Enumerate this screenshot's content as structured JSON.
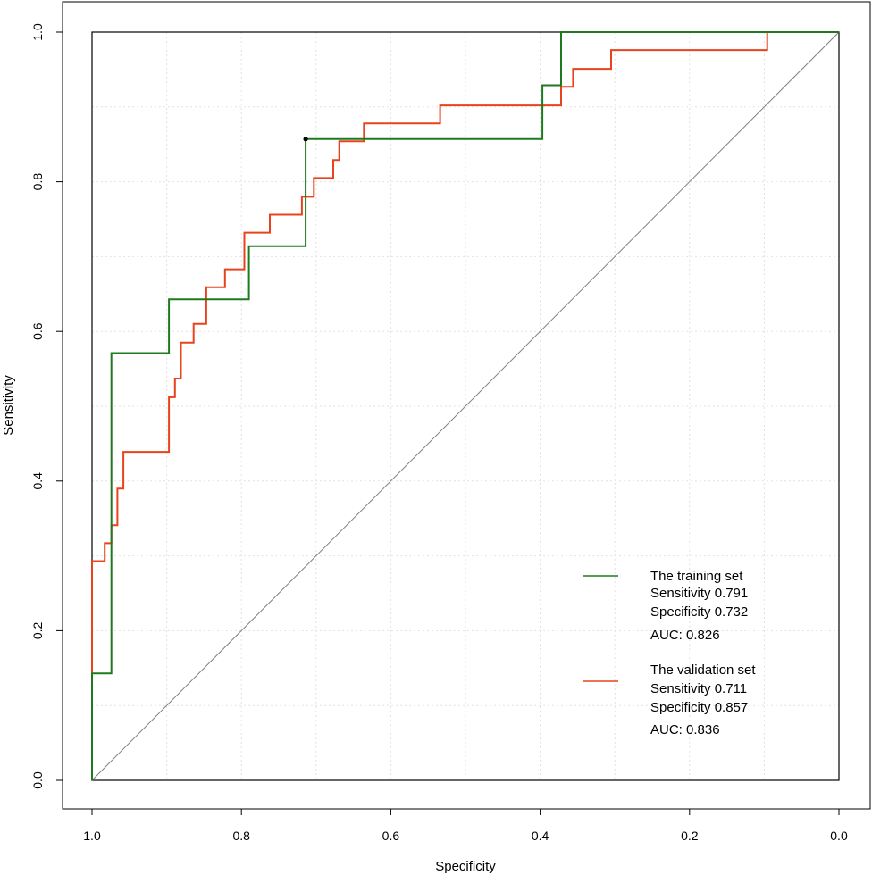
{
  "chart_data": {
    "type": "line",
    "title": "",
    "xlabel": "Specificity",
    "ylabel": "Sensitivity",
    "xlim": [
      1.0,
      0.0
    ],
    "ylim": [
      0.0,
      1.0
    ],
    "x_reversed": true,
    "grid": true,
    "x_ticks": [
      1.0,
      0.8,
      0.6,
      0.4,
      0.2,
      0.0
    ],
    "y_ticks": [
      0.0,
      0.2,
      0.4,
      0.6,
      0.8,
      1.0
    ],
    "x_tick_labels": [
      "1.0",
      "0.8",
      "0.6",
      "0.4",
      "0.2",
      "0.0"
    ],
    "y_tick_labels": [
      "0.0",
      "0.2",
      "0.4",
      "0.6",
      "0.8",
      "1.0"
    ],
    "reference_line": {
      "from": [
        1.0,
        0.0
      ],
      "to": [
        0.0,
        1.0
      ],
      "color": "#808080"
    },
    "optimal_point": {
      "x": 0.714,
      "y": 0.857
    },
    "series": [
      {
        "name": "The training set",
        "color": "#1f7a1f",
        "x": [
          1.0,
          1.0,
          0.974,
          0.974,
          0.897,
          0.897,
          0.79,
          0.79,
          0.714,
          0.714,
          0.397,
          0.397,
          0.372,
          0.372,
          0.096,
          0.0
        ],
        "y": [
          0.0,
          0.143,
          0.143,
          0.571,
          0.571,
          0.643,
          0.643,
          0.714,
          0.714,
          0.857,
          0.857,
          0.929,
          0.929,
          1.0,
          1.0,
          1.0
        ]
      },
      {
        "name": "The validation set",
        "color": "#e8431c",
        "x": [
          1.0,
          1.0,
          0.983,
          0.983,
          0.974,
          0.974,
          0.966,
          0.966,
          0.958,
          0.958,
          0.897,
          0.897,
          0.889,
          0.889,
          0.881,
          0.881,
          0.864,
          0.864,
          0.847,
          0.847,
          0.822,
          0.822,
          0.796,
          0.796,
          0.762,
          0.762,
          0.719,
          0.719,
          0.703,
          0.703,
          0.677,
          0.677,
          0.669,
          0.669,
          0.636,
          0.636,
          0.534,
          0.534,
          0.372,
          0.372,
          0.356,
          0.356,
          0.305,
          0.305,
          0.096,
          0.096,
          0.0
        ],
        "y": [
          0.0,
          0.293,
          0.293,
          0.317,
          0.317,
          0.341,
          0.341,
          0.39,
          0.39,
          0.439,
          0.439,
          0.512,
          0.512,
          0.537,
          0.537,
          0.585,
          0.585,
          0.61,
          0.61,
          0.659,
          0.659,
          0.683,
          0.683,
          0.732,
          0.732,
          0.756,
          0.756,
          0.78,
          0.78,
          0.805,
          0.805,
          0.829,
          0.829,
          0.854,
          0.854,
          0.878,
          0.878,
          0.902,
          0.902,
          0.927,
          0.927,
          0.951,
          0.951,
          0.976,
          0.976,
          1.0,
          1.0
        ]
      }
    ],
    "legend": {
      "position": "bottom-right",
      "entries": [
        {
          "color": "#1f7a1f",
          "title": "The training set",
          "sensitivity": "Sensitivity 0.791",
          "specificity": "Specificity 0.732",
          "auc": "AUC: 0.826"
        },
        {
          "color": "#e8431c",
          "title": "The validation set",
          "sensitivity": "Sensitivity 0.711",
          "specificity": "Specificity 0.857",
          "auc": "AUC: 0.836"
        }
      ]
    }
  }
}
